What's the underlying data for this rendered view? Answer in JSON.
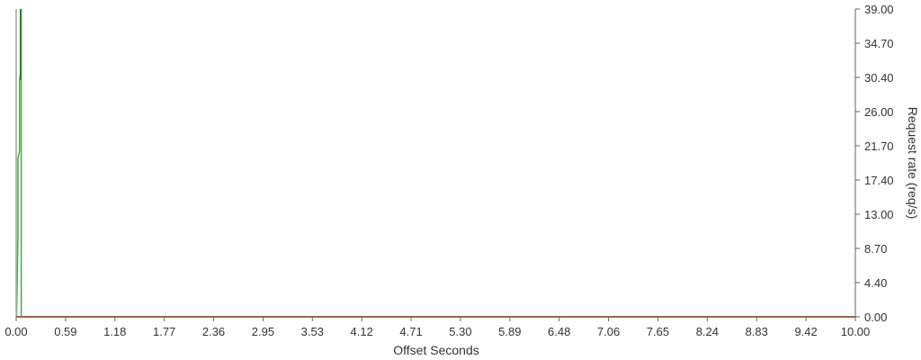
{
  "chart_data": {
    "type": "line",
    "xlabel": "Offset Seconds",
    "ylabel": "Request rate (req/s)",
    "xlim": [
      0,
      10
    ],
    "ylim": [
      0,
      39
    ],
    "x_ticks": [
      "0.00",
      "0.59",
      "1.18",
      "1.77",
      "2.36",
      "2.95",
      "3.53",
      "4.12",
      "4.71",
      "5.30",
      "5.89",
      "6.48",
      "7.06",
      "7.65",
      "8.24",
      "8.83",
      "9.42",
      "10.00"
    ],
    "y_ticks": [
      "0.00",
      "4.40",
      "8.70",
      "13.00",
      "17.40",
      "21.70",
      "26.00",
      "30.40",
      "34.70",
      "39.00"
    ],
    "y_axis_side": "right",
    "grid": false,
    "series": [
      {
        "color": "#4aa84a",
        "points": [
          [
            0.0,
            39
          ],
          [
            0.0,
            30
          ],
          [
            0.0,
            21
          ],
          [
            0.0,
            10
          ],
          [
            0.0,
            1
          ],
          [
            0.005,
            0
          ],
          [
            0.02,
            10
          ],
          [
            0.02,
            20
          ],
          [
            0.04,
            21
          ],
          [
            0.04,
            30
          ],
          [
            0.055,
            31
          ],
          [
            0.06,
            39
          ],
          [
            0.06,
            0
          ]
        ]
      },
      {
        "color": "#1a7a1a",
        "points": [
          [
            0.05,
            39
          ],
          [
            0.05,
            30
          ]
        ]
      },
      {
        "color": "#b5b5b5",
        "points": [
          [
            0.0,
            39
          ],
          [
            0.0,
            0
          ]
        ]
      },
      {
        "color": "#d2691e",
        "points": [
          [
            0.0,
            0
          ],
          [
            10.0,
            0
          ]
        ]
      }
    ]
  }
}
